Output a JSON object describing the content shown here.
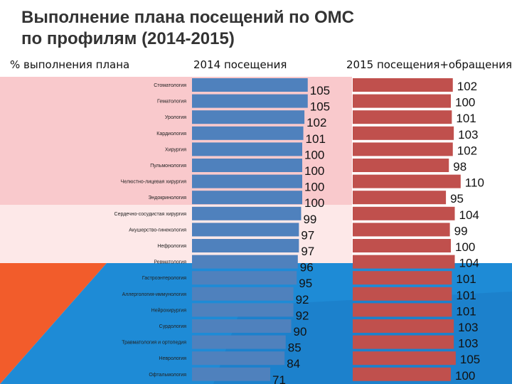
{
  "title_lines": [
    "Выполнение плана посещений по ОМС",
    "по профилям (2014-2015)"
  ],
  "header": {
    "col1": "% выполнения плана",
    "col2": "2014 посещения",
    "col3": "2015 посещения+обращения"
  },
  "colors": {
    "bar_2014": "#4f81bd",
    "bar_2015": "#c0504d",
    "band_top": "#f9c9cc",
    "band_bottom": "#fde8e8",
    "bg_orange": "#f25c2b",
    "bg_blue": "#1e8bd6"
  },
  "chart_data": {
    "type": "bar",
    "orientation": "horizontal",
    "categories": [
      "Стоматология",
      "Гематология",
      "Урология",
      "Кардиология",
      "Хирургия",
      "Пульмонология",
      "Челюстно-лицевая хирургия",
      "Эндокринология",
      "Сердечно-сосудистая хирургия",
      "Акушерство-гинекология",
      "Нефрология",
      "Ревматология",
      "Гастроэнтерология",
      "Аллергология-иммунология",
      "Нейрохирургия",
      "Сурдология",
      "Травматология и ортопедия",
      "Неврология",
      "Офтальмология"
    ],
    "series": [
      {
        "name": "2014 посещения",
        "values": [
          105,
          105,
          102,
          101,
          100,
          100,
          100,
          100,
          99,
          97,
          97,
          96,
          95,
          92,
          92,
          90,
          85,
          84,
          71
        ]
      },
      {
        "name": "2015 посещения+обращения",
        "values": [
          102,
          100,
          101,
          103,
          102,
          98,
          110,
          95,
          104,
          99,
          100,
          104,
          101,
          101,
          101,
          103,
          103,
          105,
          100
        ]
      }
    ]
  }
}
